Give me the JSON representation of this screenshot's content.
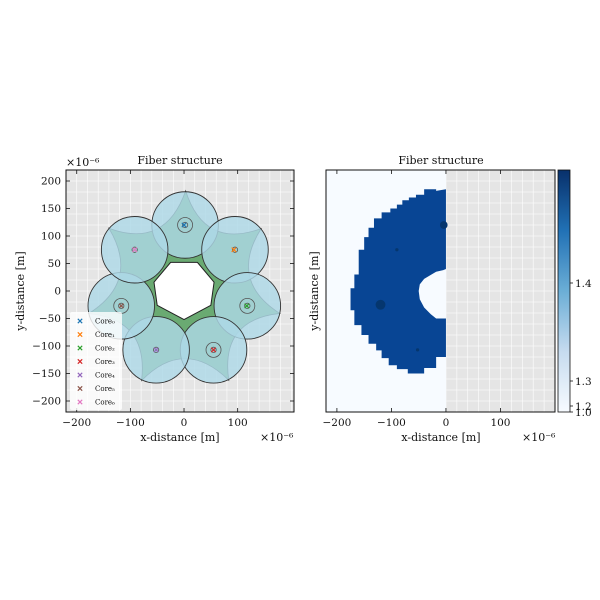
{
  "chart_data": [
    {
      "type": "scatter",
      "title": "Fiber structure",
      "xlabel": "x-distance [m]",
      "ylabel": "y-distance [m]",
      "x_scale_label": "×10⁻⁶",
      "y_scale_label": "×10⁻⁶",
      "xlim": [
        -220,
        205
      ],
      "ylim": [
        -220,
        220
      ],
      "xticks": [
        -200,
        -100,
        0,
        100
      ],
      "yticks": [
        -200,
        -150,
        -100,
        -50,
        0,
        50,
        100,
        150,
        200
      ],
      "grid": true,
      "legend_position": "lower-left",
      "cladding_color": "#6aaa72",
      "capillary_color": "#add8e6",
      "center_hole": [
        [
          25,
          52
        ],
        [
          -25,
          52
        ],
        [
          -56,
          16
        ],
        [
          -50,
          -26
        ],
        [
          0,
          -52
        ],
        [
          50,
          -26
        ],
        [
          56,
          16
        ]
      ],
      "capillaries": [
        {
          "x": 2,
          "y": 120,
          "r": 62
        },
        {
          "x": 95,
          "y": 75,
          "r": 62
        },
        {
          "x": 118,
          "y": -27,
          "r": 62
        },
        {
          "x": 55,
          "y": -107,
          "r": 62
        },
        {
          "x": -52,
          "y": -107,
          "r": 62
        },
        {
          "x": -117,
          "y": -27,
          "r": 62
        },
        {
          "x": -92,
          "y": 75,
          "r": 62
        }
      ],
      "series": [
        {
          "name": "Core₀",
          "color": "#1f77b4",
          "x": 0,
          "y": 120
        },
        {
          "name": "Core₁",
          "color": "#ff7f0e",
          "x": 93,
          "y": 75
        },
        {
          "name": "Core₂",
          "color": "#2ca02c",
          "x": 117,
          "y": -27
        },
        {
          "name": "Core₃",
          "color": "#d62728",
          "x": 55,
          "y": -107
        },
        {
          "name": "Core₄",
          "color": "#9467bd",
          "x": -52,
          "y": -107
        },
        {
          "name": "Core₅",
          "color": "#8c564b",
          "x": -117,
          "y": -27
        },
        {
          "name": "Core₆",
          "color": "#e377c2",
          "x": -92,
          "y": 75
        }
      ]
    },
    {
      "type": "heatmap",
      "title": "Fiber structure",
      "xlabel": "x-distance [m]",
      "ylabel": "y-distance [m]",
      "x_scale_label": "×10⁻⁶",
      "xlim": [
        -220,
        200
      ],
      "ylim": [
        -220,
        220
      ],
      "xticks": [
        -200,
        -100,
        0,
        100
      ],
      "grid": true,
      "colormap": "Blues",
      "low_color": "#f7fbff",
      "high_color": "#084594",
      "colorbar_ticks": [
        "1.4",
        "1.3",
        "1.2",
        "1.0"
      ]
    }
  ]
}
